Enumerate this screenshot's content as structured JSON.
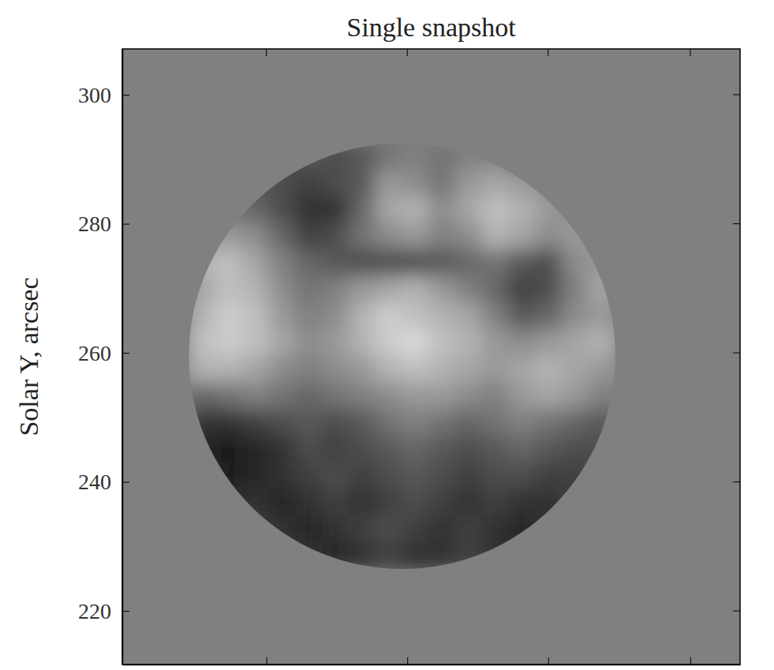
{
  "chart_data": {
    "type": "heatmap",
    "title": "Single snapshot",
    "ylabel": "Solar Y, arcsec",
    "xlim": [
      0,
      95.6
    ],
    "xticks": [
      22.3,
      44.1,
      65.9,
      87.9
    ],
    "ylim": [
      211.7,
      307.1
    ],
    "yticks": [
      220,
      240,
      260,
      280,
      300
    ],
    "tick_labels": "y",
    "color": "gray",
    "zlim": [
      0,
      1
    ],
    "fov_center": [
      43.3,
      259.5
    ],
    "fov_radius": 33,
    "x": [
      12.36,
      16.49,
      20.61,
      24.74,
      28.86,
      32.99,
      37.11,
      41.24,
      45.36,
      49.49,
      53.61,
      57.74,
      61.86,
      65.99,
      70.11,
      74.24
    ],
    "y": [
      290.44,
      286.31,
      282.19,
      278.06,
      273.94,
      269.81,
      265.69,
      261.56,
      257.44,
      253.31,
      249.19,
      245.06,
      240.94,
      236.81,
      232.69,
      228.56
    ],
    "z": [
      [
        0.35,
        0.35,
        0.3,
        0.3,
        0.35,
        0.3,
        0.35,
        0.45,
        0.5,
        0.45,
        0.5,
        0.5,
        0.45,
        0.4,
        0.4,
        0.4
      ],
      [
        0.4,
        0.4,
        0.35,
        0.3,
        0.25,
        0.3,
        0.35,
        0.6,
        0.55,
        0.45,
        0.6,
        0.65,
        0.6,
        0.55,
        0.5,
        0.45
      ],
      [
        0.45,
        0.45,
        0.4,
        0.3,
        0.2,
        0.2,
        0.4,
        0.65,
        0.7,
        0.55,
        0.65,
        0.75,
        0.7,
        0.6,
        0.55,
        0.5
      ],
      [
        0.6,
        0.6,
        0.55,
        0.4,
        0.25,
        0.3,
        0.45,
        0.55,
        0.6,
        0.5,
        0.55,
        0.7,
        0.65,
        0.55,
        0.6,
        0.55
      ],
      [
        0.7,
        0.75,
        0.65,
        0.5,
        0.4,
        0.35,
        0.3,
        0.3,
        0.3,
        0.35,
        0.4,
        0.45,
        0.35,
        0.3,
        0.55,
        0.6
      ],
      [
        0.65,
        0.75,
        0.7,
        0.55,
        0.45,
        0.5,
        0.6,
        0.65,
        0.7,
        0.6,
        0.5,
        0.4,
        0.25,
        0.3,
        0.5,
        0.65
      ],
      [
        0.7,
        0.8,
        0.75,
        0.6,
        0.5,
        0.55,
        0.7,
        0.8,
        0.75,
        0.7,
        0.65,
        0.5,
        0.35,
        0.4,
        0.55,
        0.6
      ],
      [
        0.75,
        0.8,
        0.75,
        0.65,
        0.55,
        0.6,
        0.7,
        0.8,
        0.85,
        0.75,
        0.7,
        0.6,
        0.55,
        0.6,
        0.65,
        0.7
      ],
      [
        0.7,
        0.7,
        0.65,
        0.55,
        0.5,
        0.55,
        0.6,
        0.7,
        0.75,
        0.7,
        0.65,
        0.6,
        0.65,
        0.7,
        0.65,
        0.6
      ],
      [
        0.4,
        0.45,
        0.5,
        0.45,
        0.4,
        0.45,
        0.5,
        0.55,
        0.6,
        0.6,
        0.55,
        0.5,
        0.6,
        0.65,
        0.6,
        0.5
      ],
      [
        0.2,
        0.2,
        0.25,
        0.3,
        0.35,
        0.3,
        0.35,
        0.45,
        0.5,
        0.45,
        0.4,
        0.45,
        0.5,
        0.45,
        0.4,
        0.35
      ],
      [
        0.15,
        0.1,
        0.15,
        0.2,
        0.3,
        0.25,
        0.3,
        0.35,
        0.4,
        0.35,
        0.3,
        0.35,
        0.4,
        0.35,
        0.3,
        0.3
      ],
      [
        0.2,
        0.1,
        0.15,
        0.2,
        0.25,
        0.3,
        0.25,
        0.3,
        0.35,
        0.3,
        0.25,
        0.3,
        0.3,
        0.25,
        0.25,
        0.3
      ],
      [
        0.25,
        0.2,
        0.2,
        0.15,
        0.2,
        0.25,
        0.2,
        0.25,
        0.3,
        0.25,
        0.2,
        0.25,
        0.2,
        0.2,
        0.25,
        0.3
      ],
      [
        0.3,
        0.3,
        0.25,
        0.2,
        0.15,
        0.2,
        0.25,
        0.3,
        0.25,
        0.2,
        0.25,
        0.2,
        0.15,
        0.2,
        0.25,
        0.3
      ],
      [
        0.35,
        0.3,
        0.3,
        0.25,
        0.2,
        0.15,
        0.2,
        0.25,
        0.2,
        0.2,
        0.25,
        0.2,
        0.2,
        0.25,
        0.3,
        0.35
      ]
    ]
  }
}
